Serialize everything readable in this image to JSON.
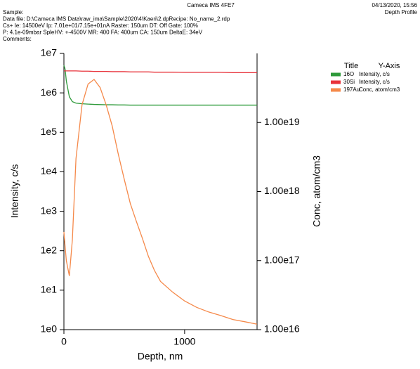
{
  "chart_data": {
    "type": "line",
    "title": "Cameca IMS 4FE7",
    "timestamp": "04/13/2020, 15:56",
    "subtitle": "Depth Profile",
    "info_lines": [
      "Sample:",
      "Data file: D:\\Cameca IMS Data\\raw_ima\\Sample\\2020\\4\\Kaeri\\2.dpRecipe: No_name_2.rdp",
      "Cs+   Ie: 14500eV   Ip: 7.01e+01/7.15e+01nA   Raster: 150um   DT: Off   Gate: 100%",
      "P: 4.1e-09mbar   SpleHV: +-4500V   MR: 400   FA: 400um   CA: 150um   DeltaE: 34eV",
      "Comments:"
    ],
    "x_label": "Depth, nm",
    "y_label": "Intensity, c/s",
    "y2_label": "Conc, atom/cm3",
    "legend_title": "Title",
    "legend_axis_header": "Y-Axis",
    "log_y": true,
    "log_y2": true,
    "xlim": [
      0,
      1600
    ],
    "xticks": [
      0,
      1000
    ],
    "ylim": [
      1,
      10000000
    ],
    "yticks": [
      {
        "value": 1,
        "label": "1e0"
      },
      {
        "value": 10,
        "label": "1e1"
      },
      {
        "value": 100,
        "label": "1e2"
      },
      {
        "value": 1000,
        "label": "1e3"
      },
      {
        "value": 10000,
        "label": "1e4"
      },
      {
        "value": 100000,
        "label": "1e5"
      },
      {
        "value": 1000000,
        "label": "1e6"
      },
      {
        "value": 10000000,
        "label": "1e7"
      }
    ],
    "y2lim": [
      1e+16,
      1e+20
    ],
    "y2ticks": [
      {
        "value": 1e+16,
        "label": "1.00e16"
      },
      {
        "value": 1e+17,
        "label": "1.00e17"
      },
      {
        "value": 1e+18,
        "label": "1.00e18"
      },
      {
        "value": 1e+19,
        "label": "1.00e19"
      }
    ],
    "x": [
      0,
      10,
      20,
      45,
      70,
      100,
      150,
      200,
      250,
      300,
      350,
      400,
      450,
      500,
      550,
      600,
      650,
      700,
      750,
      800,
      900,
      1000,
      1100,
      1200,
      1300,
      1400,
      1500,
      1600
    ],
    "series": [
      {
        "name": "16O",
        "y_axis_label": "Intensity, c/s",
        "color": "#2e9a3a",
        "values": [
          5000000,
          4000000,
          2000000,
          800000,
          600000,
          550000,
          530000,
          520000,
          510000,
          505000,
          500000,
          500000,
          495000,
          495000,
          490000,
          490000,
          490000,
          490000,
          490000,
          490000,
          490000,
          490000,
          490000,
          490000,
          490000,
          490000,
          490000,
          490000
        ]
      },
      {
        "name": "30Si",
        "y_axis_label": "Intensity, c/s",
        "color": "#e8323a",
        "values": [
          3600000,
          3600000,
          3600000,
          3600000,
          3600000,
          3600000,
          3550000,
          3550000,
          3500000,
          3500000,
          3500000,
          3450000,
          3450000,
          3450000,
          3400000,
          3400000,
          3400000,
          3400000,
          3350000,
          3350000,
          3350000,
          3300000,
          3300000,
          3300000,
          3300000,
          3250000,
          3250000,
          3250000
        ]
      },
      {
        "name": "197Au",
        "y_axis_label": "Conc, atom/cm3",
        "color": "#f5894a",
        "axis": "y2",
        "values": [
          2.6e+17,
          1.6e+17,
          1e+17,
          6e+16,
          2e+17,
          3e+18,
          1.8e+19,
          3.6e+19,
          4.2e+19,
          3.2e+19,
          1.8e+19,
          8.9e+18,
          3.5e+18,
          1.5e+18,
          6.7e+17,
          3.7e+17,
          2.1e+17,
          1.15e+17,
          7.2e+16,
          5e+16,
          3.5e+16,
          2.6e+16,
          2.1e+16,
          1.8e+16,
          1.6e+16,
          1.4e+16,
          1.3e+16,
          1.2e+16
        ]
      }
    ]
  }
}
